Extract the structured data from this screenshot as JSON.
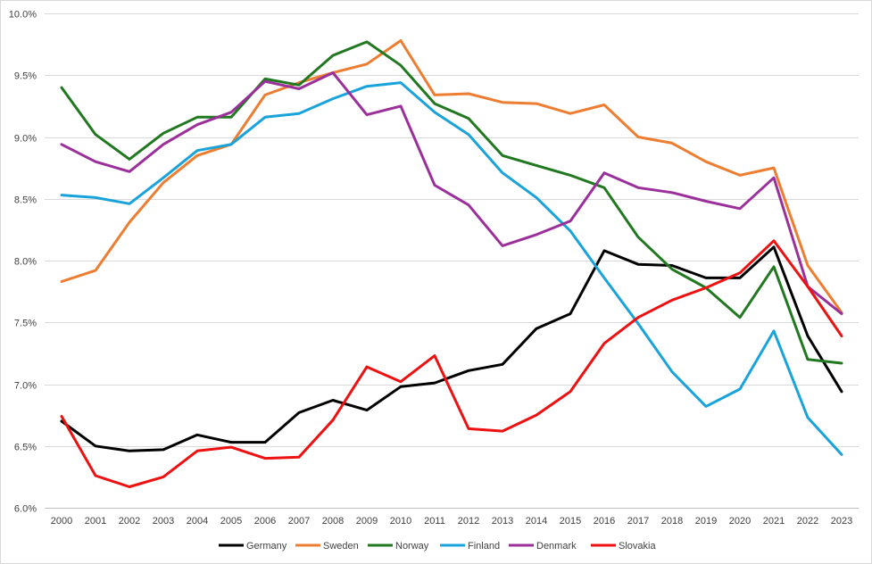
{
  "chart_data": {
    "type": "line",
    "title": "",
    "xlabel": "",
    "ylabel": "",
    "x": [
      "2000",
      "2001",
      "2002",
      "2003",
      "2004",
      "2005",
      "2006",
      "2007",
      "2008",
      "2009",
      "2010",
      "2011",
      "2012",
      "2013",
      "2014",
      "2015",
      "2016",
      "2017",
      "2018",
      "2019",
      "2020",
      "2021",
      "2022",
      "2023"
    ],
    "ylim": [
      6.0,
      10.0
    ],
    "yticks": [
      6.0,
      6.5,
      7.0,
      7.5,
      8.0,
      8.5,
      9.0,
      9.5,
      10.0
    ],
    "ytick_labels": [
      "6.0%",
      "6.5%",
      "7.0%",
      "7.5%",
      "8.0%",
      "8.5%",
      "9.0%",
      "9.5%",
      "10.0%"
    ],
    "grid": true,
    "legend_position": "bottom",
    "series": [
      {
        "name": "Germany",
        "color": "#000000",
        "values": [
          6.7,
          6.5,
          6.46,
          6.47,
          6.59,
          6.53,
          6.53,
          6.77,
          6.87,
          6.79,
          6.98,
          7.01,
          7.11,
          7.16,
          7.45,
          7.57,
          8.08,
          7.97,
          7.96,
          7.86,
          7.86,
          8.11,
          7.39,
          6.94
        ]
      },
      {
        "name": "Sweden",
        "color": "#ED7D31",
        "values": [
          7.83,
          7.92,
          8.31,
          8.63,
          8.85,
          8.94,
          9.34,
          9.44,
          9.52,
          9.59,
          9.78,
          9.34,
          9.35,
          9.28,
          9.27,
          9.19,
          9.26,
          9.0,
          8.95,
          8.8,
          8.69,
          8.75,
          7.96,
          7.58
        ]
      },
      {
        "name": "Norway",
        "color": "#217821",
        "values": [
          9.4,
          9.02,
          8.82,
          9.03,
          9.16,
          9.16,
          9.47,
          9.42,
          9.66,
          9.77,
          9.58,
          9.27,
          9.15,
          8.85,
          8.77,
          8.69,
          8.59,
          8.19,
          7.93,
          7.78,
          7.54,
          7.95,
          7.2,
          7.17
        ]
      },
      {
        "name": "Finland",
        "color": "#1AA3DB",
        "values": [
          8.53,
          8.51,
          8.46,
          8.67,
          8.89,
          8.94,
          9.16,
          9.19,
          9.31,
          9.41,
          9.44,
          9.2,
          9.02,
          8.71,
          8.51,
          8.24,
          7.86,
          7.49,
          7.1,
          6.82,
          6.96,
          7.43,
          6.73,
          6.43
        ]
      },
      {
        "name": "Denmark",
        "color": "#9B309B",
        "values": [
          8.94,
          8.8,
          8.72,
          8.94,
          9.1,
          9.2,
          9.45,
          9.39,
          9.52,
          9.18,
          9.25,
          8.61,
          8.45,
          8.12,
          8.21,
          8.32,
          8.71,
          8.59,
          8.55,
          8.48,
          8.42,
          8.67,
          7.79,
          7.57
        ]
      },
      {
        "name": "Slovakia",
        "color": "#EE1111",
        "values": [
          6.74,
          6.26,
          6.17,
          6.25,
          6.46,
          6.49,
          6.4,
          6.41,
          6.71,
          7.14,
          7.02,
          7.23,
          6.64,
          6.62,
          6.75,
          6.94,
          7.33,
          7.54,
          7.68,
          7.78,
          7.9,
          8.16,
          7.79,
          7.39
        ]
      }
    ]
  }
}
